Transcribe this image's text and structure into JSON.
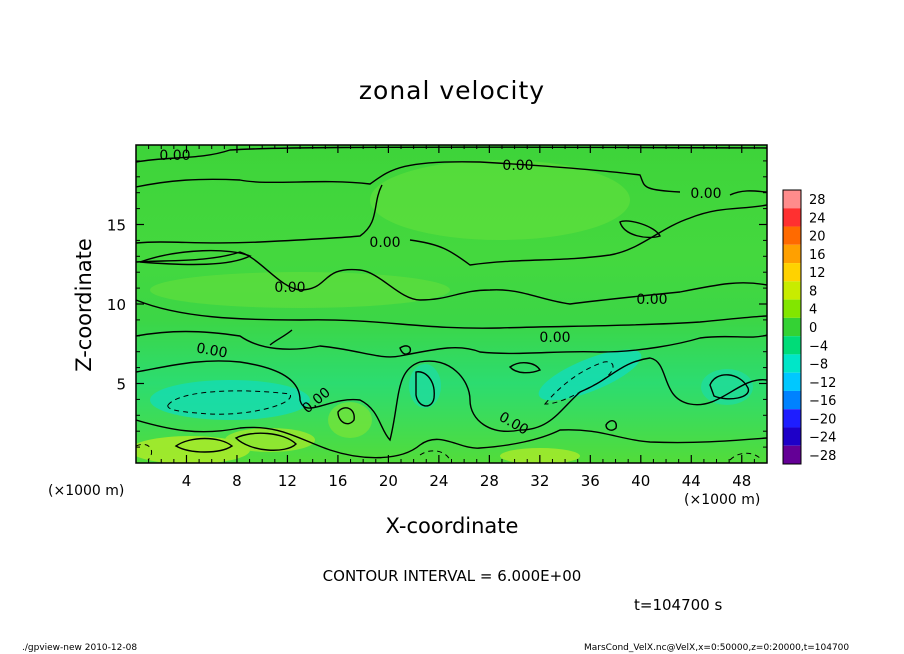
{
  "chart_data": {
    "type": "heatmap",
    "title": "zonal velocity",
    "xlabel": "X-coordinate",
    "ylabel": "Z-coordinate",
    "x_unit": "(×1000 m)",
    "y_unit": "(×1000 m)",
    "xlim": [
      0,
      50
    ],
    "ylim": [
      0,
      20
    ],
    "x_ticks": [
      4,
      8,
      12,
      16,
      20,
      24,
      28,
      32,
      36,
      40,
      44,
      48
    ],
    "y_ticks": [
      5,
      10,
      15
    ],
    "colorbar": {
      "levels": [
        28,
        24,
        20,
        16,
        12,
        8,
        4,
        0,
        -4,
        -8,
        -12,
        -16,
        -20,
        -24,
        -28
      ],
      "level_labels": [
        "28",
        "24",
        "20",
        "16",
        "12",
        "8",
        "4",
        "0",
        "−4",
        "−8",
        "−12",
        "−16",
        "−20",
        "−24",
        "−28"
      ],
      "colors": [
        "#ff8c8c",
        "#ff3030",
        "#ff6a00",
        "#ffa000",
        "#ffd200",
        "#c8ec00",
        "#82e600",
        "#34d234",
        "#00dc78",
        "#00e6c8",
        "#00c8ff",
        "#0082ff",
        "#1e1eff",
        "#1e00c8",
        "#640096"
      ]
    },
    "contour_labels": [
      "0.00",
      "0.00",
      "0.00",
      "0.00",
      "0.00",
      "0.00",
      "0.00",
      "0.00",
      "0.00",
      "0.00"
    ],
    "contour_interval": "CONTOUR INTERVAL = 6.000E+00",
    "grid": false
  },
  "time_label": "t=104700 s",
  "footer_left": "./gpview-new  2010-12-08",
  "footer_right": "MarsCond_VelX.nc@VelX,x=0:50000,z=0:20000,t=104700"
}
